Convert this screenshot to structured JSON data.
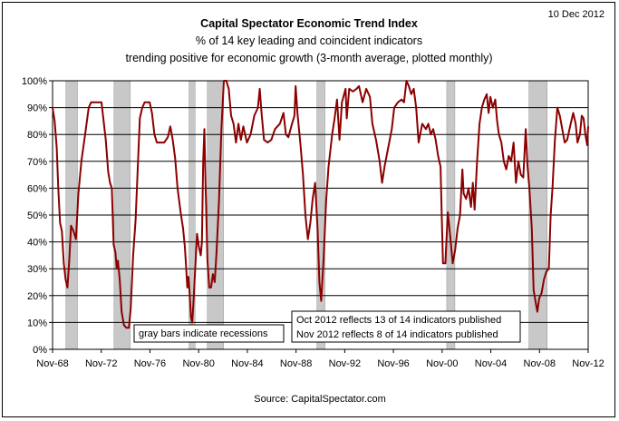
{
  "header": {
    "date_stamp": "10 Dec 2012",
    "title": "Capital Spectator Economic Trend Index",
    "subtitle_1": "% of 14 key leading and coincident indicators",
    "subtitle_2": "trending positive for economic growth (3-month average, plotted monthly)"
  },
  "footer": {
    "source": "Source:  CapitalSpectator.com"
  },
  "notes": {
    "recessions": "gray bars indicate recessions",
    "pub_line_1": "Oct 2012 reflects 13 of 14 indicators published",
    "pub_line_2": "Nov 2012 reflects  8 of 14 indicators published"
  },
  "colors": {
    "line": "#8B0000",
    "recession_fill": "#c8c8c8",
    "grid": "#000000"
  },
  "chart_data": {
    "type": "line",
    "title": "Capital Spectator Economic Trend Index",
    "series": [
      {
        "name": "",
        "points": [
          [
            1968.83,
            90
          ],
          [
            1969.0,
            85
          ],
          [
            1969.17,
            75
          ],
          [
            1969.3,
            60
          ],
          [
            1969.45,
            47
          ],
          [
            1969.6,
            44
          ],
          [
            1969.75,
            32
          ],
          [
            1969.9,
            26
          ],
          [
            1970.05,
            23
          ],
          [
            1970.2,
            33
          ],
          [
            1970.35,
            46
          ],
          [
            1970.55,
            44
          ],
          [
            1970.75,
            41
          ],
          [
            1970.95,
            58
          ],
          [
            1971.2,
            70
          ],
          [
            1971.5,
            80
          ],
          [
            1971.8,
            90
          ],
          [
            1972.0,
            92
          ],
          [
            1972.3,
            92
          ],
          [
            1972.6,
            92
          ],
          [
            1972.85,
            92
          ],
          [
            1973.0,
            86
          ],
          [
            1973.2,
            78
          ],
          [
            1973.4,
            66
          ],
          [
            1973.55,
            62
          ],
          [
            1973.7,
            60
          ],
          [
            1973.85,
            39
          ],
          [
            1974.0,
            36
          ],
          [
            1974.1,
            30
          ],
          [
            1974.2,
            33
          ],
          [
            1974.35,
            26
          ],
          [
            1974.5,
            14
          ],
          [
            1974.7,
            9
          ],
          [
            1974.9,
            8
          ],
          [
            1975.1,
            8
          ],
          [
            1975.25,
            15
          ],
          [
            1975.45,
            35
          ],
          [
            1975.65,
            48
          ],
          [
            1975.85,
            70
          ],
          [
            1976.0,
            86
          ],
          [
            1976.2,
            90
          ],
          [
            1976.4,
            92
          ],
          [
            1976.6,
            92
          ],
          [
            1976.8,
            92
          ],
          [
            1977.0,
            88
          ],
          [
            1977.2,
            80
          ],
          [
            1977.4,
            77
          ],
          [
            1977.7,
            77
          ],
          [
            1978.0,
            77
          ],
          [
            1978.3,
            79
          ],
          [
            1978.5,
            83
          ],
          [
            1978.7,
            78
          ],
          [
            1978.9,
            71
          ],
          [
            1979.1,
            60
          ],
          [
            1979.35,
            51
          ],
          [
            1979.55,
            45
          ],
          [
            1979.7,
            38
          ],
          [
            1979.8,
            31
          ],
          [
            1979.9,
            23
          ],
          [
            1980.0,
            27
          ],
          [
            1980.1,
            20
          ],
          [
            1980.2,
            12
          ],
          [
            1980.3,
            10
          ],
          [
            1980.4,
            17
          ],
          [
            1980.55,
            30
          ],
          [
            1980.7,
            43
          ],
          [
            1980.85,
            38
          ],
          [
            1981.0,
            35
          ],
          [
            1981.1,
            40
          ],
          [
            1981.2,
            70
          ],
          [
            1981.3,
            82
          ],
          [
            1981.4,
            62
          ],
          [
            1981.55,
            33
          ],
          [
            1981.7,
            23
          ],
          [
            1981.85,
            23
          ],
          [
            1982.0,
            28
          ],
          [
            1982.15,
            25
          ],
          [
            1982.3,
            36
          ],
          [
            1982.5,
            55
          ],
          [
            1982.7,
            82
          ],
          [
            1982.9,
            100
          ],
          [
            1983.1,
            100
          ],
          [
            1983.3,
            97
          ],
          [
            1983.5,
            87
          ],
          [
            1983.7,
            84
          ],
          [
            1983.9,
            77
          ],
          [
            1984.1,
            84
          ],
          [
            1984.3,
            78
          ],
          [
            1984.5,
            83
          ],
          [
            1984.8,
            77
          ],
          [
            1985.1,
            80
          ],
          [
            1985.4,
            87
          ],
          [
            1985.7,
            90
          ],
          [
            1985.85,
            97
          ],
          [
            1986.0,
            88
          ],
          [
            1986.2,
            78
          ],
          [
            1986.5,
            77
          ],
          [
            1986.8,
            78
          ],
          [
            1987.1,
            82
          ],
          [
            1987.5,
            84
          ],
          [
            1987.8,
            88
          ],
          [
            1988.0,
            80
          ],
          [
            1988.2,
            79
          ],
          [
            1988.5,
            84
          ],
          [
            1988.7,
            87
          ],
          [
            1988.8,
            98
          ],
          [
            1988.95,
            88
          ],
          [
            1989.2,
            76
          ],
          [
            1989.4,
            65
          ],
          [
            1989.6,
            50
          ],
          [
            1989.8,
            41
          ],
          [
            1990.0,
            47
          ],
          [
            1990.2,
            56
          ],
          [
            1990.4,
            62
          ],
          [
            1990.6,
            45
          ],
          [
            1990.75,
            25
          ],
          [
            1990.9,
            18
          ],
          [
            1991.1,
            34
          ],
          [
            1991.3,
            55
          ],
          [
            1991.5,
            68
          ],
          [
            1991.8,
            80
          ],
          [
            1992.0,
            86
          ],
          [
            1992.2,
            93
          ],
          [
            1992.4,
            78
          ],
          [
            1992.6,
            92
          ],
          [
            1992.9,
            97
          ],
          [
            1993.0,
            86
          ],
          [
            1993.2,
            97
          ],
          [
            1993.5,
            96
          ],
          [
            1993.8,
            97
          ],
          [
            1994.0,
            98
          ],
          [
            1994.3,
            92
          ],
          [
            1994.6,
            97
          ],
          [
            1994.9,
            94
          ],
          [
            1995.1,
            84
          ],
          [
            1995.4,
            78
          ],
          [
            1995.7,
            70
          ],
          [
            1995.9,
            62
          ],
          [
            1996.1,
            68
          ],
          [
            1996.4,
            75
          ],
          [
            1996.7,
            82
          ],
          [
            1996.9,
            90
          ],
          [
            1997.2,
            92
          ],
          [
            1997.5,
            93
          ],
          [
            1997.7,
            92
          ],
          [
            1997.9,
            100
          ],
          [
            1998.1,
            98
          ],
          [
            1998.3,
            95
          ],
          [
            1998.5,
            97
          ],
          [
            1998.7,
            90
          ],
          [
            1998.9,
            77
          ],
          [
            1999.2,
            84
          ],
          [
            1999.5,
            82
          ],
          [
            1999.7,
            84
          ],
          [
            1999.9,
            80
          ],
          [
            2000.1,
            82
          ],
          [
            2000.3,
            78
          ],
          [
            2000.5,
            72
          ],
          [
            2000.7,
            68
          ],
          [
            2000.8,
            50
          ],
          [
            2000.9,
            32
          ],
          [
            2001.1,
            32
          ],
          [
            2001.3,
            51
          ],
          [
            2001.5,
            42
          ],
          [
            2001.7,
            32
          ],
          [
            2001.9,
            37
          ],
          [
            2002.1,
            45
          ],
          [
            2002.3,
            50
          ],
          [
            2002.5,
            67
          ],
          [
            2002.6,
            58
          ],
          [
            2002.8,
            56
          ],
          [
            2003.0,
            60
          ],
          [
            2003.2,
            53
          ],
          [
            2003.35,
            62
          ],
          [
            2003.5,
            52
          ],
          [
            2003.7,
            70
          ],
          [
            2003.9,
            84
          ],
          [
            2004.1,
            90
          ],
          [
            2004.3,
            93
          ],
          [
            2004.5,
            95
          ],
          [
            2004.65,
            88
          ],
          [
            2004.8,
            94
          ],
          [
            2005.0,
            90
          ],
          [
            2005.2,
            93
          ],
          [
            2005.35,
            85
          ],
          [
            2005.5,
            80
          ],
          [
            2005.7,
            77
          ],
          [
            2005.9,
            70
          ],
          [
            2006.1,
            67
          ],
          [
            2006.3,
            72
          ],
          [
            2006.5,
            70
          ],
          [
            2006.7,
            77
          ],
          [
            2006.9,
            62
          ],
          [
            2007.1,
            70
          ],
          [
            2007.3,
            65
          ],
          [
            2007.5,
            64
          ],
          [
            2007.7,
            82
          ],
          [
            2007.85,
            68
          ],
          [
            2008.0,
            60
          ],
          [
            2008.2,
            45
          ],
          [
            2008.35,
            22
          ],
          [
            2008.5,
            18
          ],
          [
            2008.65,
            14
          ],
          [
            2008.8,
            19
          ],
          [
            2009.0,
            21
          ],
          [
            2009.2,
            26
          ],
          [
            2009.4,
            29
          ],
          [
            2009.6,
            30
          ],
          [
            2009.75,
            50
          ],
          [
            2009.9,
            60
          ],
          [
            2010.1,
            78
          ],
          [
            2010.3,
            90
          ],
          [
            2010.5,
            87
          ],
          [
            2010.7,
            82
          ],
          [
            2010.9,
            77
          ],
          [
            2011.1,
            78
          ],
          [
            2011.3,
            82
          ],
          [
            2011.5,
            86
          ],
          [
            2011.6,
            88
          ],
          [
            2011.8,
            84
          ],
          [
            2011.95,
            77
          ],
          [
            2012.15,
            80
          ],
          [
            2012.3,
            87
          ],
          [
            2012.45,
            86
          ],
          [
            2012.6,
            80
          ],
          [
            2012.75,
            76
          ],
          [
            2012.83,
            83
          ]
        ]
      }
    ],
    "recessions": [
      [
        1969.92,
        1970.88
      ],
      [
        1973.88,
        1975.21
      ],
      [
        1980.04,
        1980.54
      ],
      [
        1981.54,
        1982.88
      ],
      [
        1990.54,
        1991.21
      ],
      [
        2001.21,
        2001.88
      ],
      [
        2007.96,
        2009.46
      ]
    ],
    "x_ticks": [
      "Nov-68",
      "Nov-72",
      "Nov-76",
      "Nov-80",
      "Nov-84",
      "Nov-88",
      "Nov-92",
      "Nov-96",
      "Nov-00",
      "Nov-04",
      "Nov-08",
      "Nov-12"
    ],
    "x_tick_values": [
      1968.83,
      1972.83,
      1976.83,
      1980.83,
      1984.83,
      1988.83,
      1992.83,
      1996.83,
      2000.83,
      2004.83,
      2008.83,
      2012.83
    ],
    "xlim": [
      1968.83,
      2012.83
    ],
    "y_ticks": [
      "0%",
      "10%",
      "20%",
      "30%",
      "40%",
      "50%",
      "60%",
      "70%",
      "80%",
      "90%",
      "100%"
    ],
    "y_tick_values": [
      0,
      10,
      20,
      30,
      40,
      50,
      60,
      70,
      80,
      90,
      100
    ],
    "ylim": [
      0,
      100
    ],
    "grid": "horizontal"
  }
}
